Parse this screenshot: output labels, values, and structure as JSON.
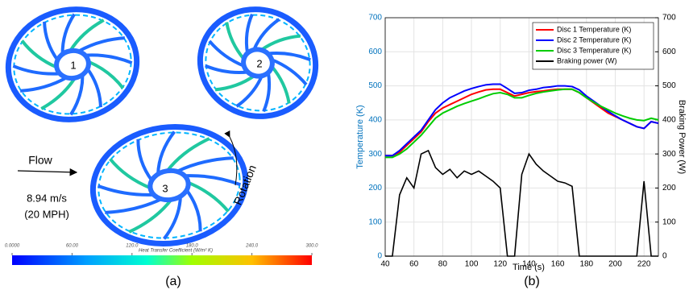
{
  "panel_a": {
    "disc_labels": [
      "1",
      "2",
      "3"
    ],
    "flow": "Flow",
    "speed": "8.94 m/s",
    "speed_mph": "(20 MPH)",
    "rotation": "Rotation",
    "colorbar_title": "Heat Transfer Coefficient (W/m² K)",
    "colorbar_ticks": [
      {
        "value": 0,
        "label": "0.0000"
      },
      {
        "value": 60,
        "label": "60.00"
      },
      {
        "value": 120,
        "label": "120.0"
      },
      {
        "value": 180,
        "label": "180.0"
      },
      {
        "value": 240,
        "label": "240.0"
      },
      {
        "value": 300,
        "label": "300.0"
      }
    ],
    "caption": "(a)"
  },
  "chart_data": {
    "type": "line",
    "caption": "(b)",
    "x_label": "Time (s)",
    "y_label": "Temperature (K)",
    "y2_label": "Braking Power (W)",
    "x": [
      40,
      45,
      50,
      55,
      60,
      65,
      70,
      75,
      80,
      85,
      90,
      95,
      100,
      105,
      110,
      115,
      120,
      125,
      130,
      135,
      140,
      145,
      150,
      155,
      160,
      165,
      170,
      175,
      180,
      185,
      190,
      195,
      200,
      205,
      210,
      215,
      220,
      225,
      230
    ],
    "xlim": [
      40,
      230
    ],
    "xticks": [
      40,
      60,
      80,
      100,
      120,
      140,
      160,
      180,
      200,
      220
    ],
    "ylim": [
      0,
      700
    ],
    "yticks": [
      0,
      100,
      200,
      300,
      400,
      500,
      600,
      700
    ],
    "y2lim": [
      0,
      700
    ],
    "y2ticks": [
      0,
      100,
      200,
      300,
      400,
      500,
      600,
      700
    ],
    "grid": true,
    "legend": "upper right",
    "series": [
      {
        "name": "Disc 1 Temperature (K)",
        "color": "#ff0000",
        "values": [
          295,
          295,
          305,
          325,
          345,
          365,
          395,
          420,
          435,
          445,
          455,
          465,
          475,
          482,
          488,
          490,
          490,
          480,
          470,
          475,
          480,
          483,
          485,
          488,
          490,
          490,
          490,
          480,
          465,
          450,
          435,
          420,
          410,
          400,
          390,
          380,
          375,
          395,
          390
        ]
      },
      {
        "name": "Disc 2 Temperature (K)",
        "color": "#0000ff",
        "values": [
          295,
          295,
          310,
          330,
          350,
          370,
          400,
          430,
          450,
          465,
          475,
          485,
          492,
          498,
          503,
          505,
          505,
          492,
          478,
          480,
          487,
          490,
          495,
          497,
          500,
          500,
          498,
          488,
          470,
          455,
          440,
          425,
          412,
          400,
          390,
          380,
          375,
          395,
          390
        ]
      },
      {
        "name": "Disc 3 Temperature (K)",
        "color": "#00cc00",
        "values": [
          290,
          290,
          300,
          315,
          335,
          355,
          380,
          405,
          420,
          430,
          440,
          448,
          455,
          462,
          470,
          477,
          480,
          475,
          465,
          465,
          472,
          478,
          482,
          485,
          488,
          490,
          490,
          480,
          465,
          452,
          440,
          430,
          420,
          412,
          405,
          400,
          398,
          405,
          400
        ]
      },
      {
        "name": "Braking power (W)",
        "color": "#000000",
        "axis": "y2",
        "values": [
          0,
          0,
          180,
          230,
          200,
          300,
          310,
          260,
          240,
          255,
          230,
          250,
          240,
          250,
          235,
          220,
          200,
          0,
          0,
          240,
          300,
          270,
          250,
          235,
          220,
          215,
          205,
          0,
          0,
          0,
          0,
          0,
          0,
          0,
          0,
          0,
          220,
          0,
          0
        ]
      }
    ]
  }
}
